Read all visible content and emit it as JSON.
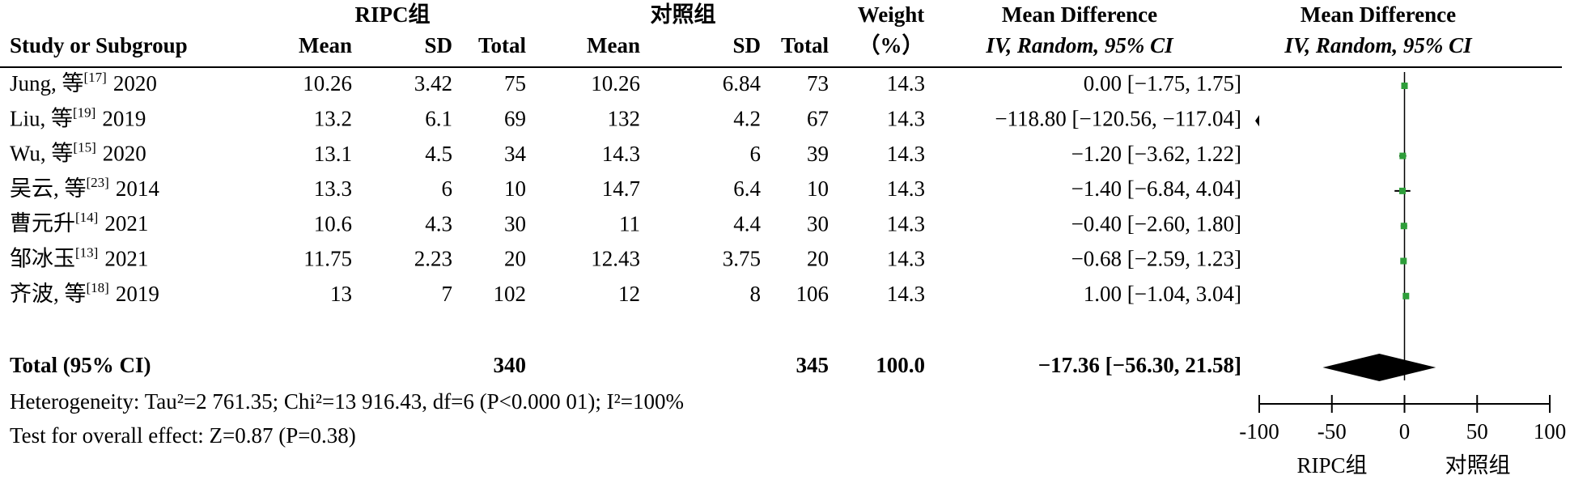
{
  "chart_data": {
    "type": "forest",
    "headers": {
      "study": "Study or Subgroup",
      "groups": [
        "RIPC组",
        "对照组"
      ],
      "mean": "Mean",
      "sd": "SD",
      "total": "Total",
      "weight": "Weight",
      "weight_unit": "（%）",
      "md": "Mean Difference",
      "method": "IV, Random, 95% CI"
    },
    "studies": [
      {
        "author": "Jung, 等",
        "ref": "[17]",
        "year": "2020",
        "exp": [
          "10.26",
          "3.42",
          "75"
        ],
        "ctrl": [
          "10.26",
          "6.84",
          "73"
        ],
        "weight": "14.3"
      },
      {
        "author": "Liu, 等",
        "ref": "[19]",
        "year": "2019",
        "exp": [
          "13.2",
          "6.1",
          "69"
        ],
        "ctrl": [
          "132",
          "4.2",
          "67"
        ],
        "weight": "14.3"
      },
      {
        "author": "Wu, 等",
        "ref": "[15]",
        "year": "2020",
        "exp": [
          "13.1",
          "4.5",
          "34"
        ],
        "ctrl": [
          "14.3",
          "6",
          "39"
        ],
        "weight": "14.3"
      },
      {
        "author": "吴云, 等",
        "ref": "[23]",
        "year": "2014",
        "exp": [
          "13.3",
          "6",
          "10"
        ],
        "ctrl": [
          "14.7",
          "6.4",
          "10"
        ],
        "weight": "14.3"
      },
      {
        "author": "曹元升",
        "ref": "[14]",
        "year": "2021",
        "exp": [
          "10.6",
          "4.3",
          "30"
        ],
        "ctrl": [
          "11",
          "4.4",
          "30"
        ],
        "weight": "14.3"
      },
      {
        "author": "邹冰玉",
        "ref": "[13]",
        "year": "2021",
        "exp": [
          "11.75",
          "2.23",
          "20"
        ],
        "ctrl": [
          "12.43",
          "3.75",
          "20"
        ],
        "weight": "14.3"
      },
      {
        "author": "齐波, 等",
        "ref": "[18]",
        "year": "2019",
        "exp": [
          "13",
          "7",
          "102"
        ],
        "ctrl": [
          "12",
          "8",
          "106"
        ],
        "weight": "14.3"
      }
    ],
    "values": [
      0,
      -118.8,
      -1.2,
      -1.4,
      -0.4,
      -0.68,
      1
    ],
    "ci_low": [
      -1.75,
      -120.56,
      -3.62,
      -6.84,
      -2.6,
      -2.59,
      -1.04
    ],
    "ci_high": [
      1.75,
      -117.04,
      1.22,
      4.04,
      1.8,
      1.23,
      3.04
    ],
    "value_labels": [
      "0.00 [−1.75, 1.75]",
      "−118.80 [−120.56, −117.04]",
      "−1.20 [−3.62, 1.22]",
      "−1.40 [−6.84, 4.04]",
      "−0.40 [−2.60, 1.80]",
      "−0.68 [−2.59, 1.23]",
      "1.00 [−1.04, 3.04]"
    ],
    "marker_color": "#2e9e3a",
    "total": {
      "label": "Total (95% CI)",
      "exp_total": "340",
      "ctrl_total": "345",
      "weight": "100.0",
      "value": -17.36,
      "ci_low": -56.3,
      "ci_high": 21.58,
      "value_label": "−17.36 [−56.30, 21.58]"
    },
    "heterogeneity": "Heterogeneity: Tau²=2 761.35; Chi²=13 916.43, df=6 (P<0.000 01); I²=100%",
    "overall_effect": "Test for overall effect: Z=0.87 (P=0.38)",
    "xlim": [
      -100,
      100
    ],
    "xticks": [
      -100,
      -50,
      0,
      50,
      100
    ],
    "xlabels": [
      "RIPC组",
      "对照组"
    ]
  }
}
